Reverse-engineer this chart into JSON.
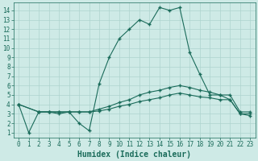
{
  "xlabel": "Humidex (Indice chaleur)",
  "ylabel": "",
  "bg_color": "#ceeae6",
  "grid_color": "#aed4cf",
  "line_color": "#1a6b5a",
  "x_ticks": [
    0,
    1,
    2,
    3,
    4,
    5,
    6,
    7,
    8,
    9,
    10,
    11,
    12,
    13,
    14,
    15,
    16,
    17,
    18,
    19,
    20,
    21,
    22,
    23
  ],
  "y_ticks": [
    1,
    2,
    3,
    4,
    5,
    6,
    7,
    8,
    9,
    10,
    11,
    12,
    13,
    14
  ],
  "ylim": [
    0.5,
    14.8
  ],
  "xlim": [
    -0.5,
    23.5
  ],
  "series1_x": [
    0,
    1,
    2,
    3,
    4,
    5,
    6,
    7,
    8,
    9,
    10,
    11,
    12,
    13,
    14,
    15,
    16,
    17,
    18,
    19,
    20,
    21,
    22,
    23
  ],
  "series1_y": [
    4.0,
    1.0,
    3.2,
    3.2,
    3.0,
    3.2,
    2.0,
    1.2,
    6.2,
    9.0,
    11.0,
    12.0,
    13.0,
    12.5,
    14.3,
    14.0,
    14.3,
    9.5,
    7.2,
    5.0,
    5.0,
    4.5,
    3.0,
    2.8
  ],
  "series2_x": [
    0,
    2,
    3,
    4,
    5,
    6,
    7,
    8,
    9,
    10,
    11,
    12,
    13,
    14,
    15,
    16,
    17,
    18,
    19,
    20,
    21,
    22,
    23
  ],
  "series2_y": [
    4.0,
    3.2,
    3.2,
    3.2,
    3.2,
    3.2,
    3.2,
    3.5,
    3.8,
    4.2,
    4.5,
    5.0,
    5.3,
    5.5,
    5.8,
    6.0,
    5.8,
    5.5,
    5.3,
    5.0,
    5.0,
    3.2,
    3.2
  ],
  "series3_x": [
    0,
    2,
    3,
    4,
    5,
    6,
    7,
    8,
    9,
    10,
    11,
    12,
    13,
    14,
    15,
    16,
    17,
    18,
    19,
    20,
    21,
    22,
    23
  ],
  "series3_y": [
    4.0,
    3.2,
    3.2,
    3.2,
    3.2,
    3.2,
    3.2,
    3.3,
    3.5,
    3.8,
    4.0,
    4.3,
    4.5,
    4.7,
    5.0,
    5.2,
    5.0,
    4.8,
    4.7,
    4.5,
    4.5,
    3.0,
    3.0
  ],
  "marker": "+",
  "markersize": 3,
  "linewidth": 0.8,
  "xlabel_fontsize": 7,
  "tick_fontsize": 5.5
}
